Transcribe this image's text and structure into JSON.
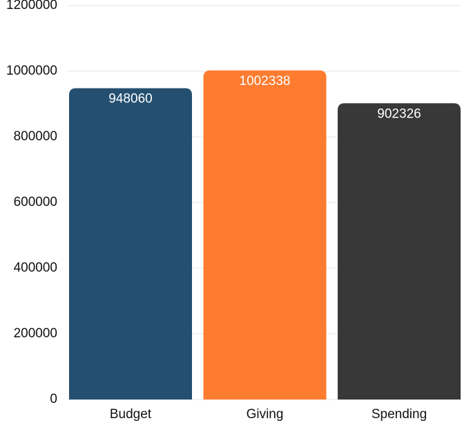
{
  "chart_data": {
    "type": "bar",
    "categories": [
      "Budget",
      "Giving",
      "Spending"
    ],
    "values": [
      948060,
      1002338,
      902326
    ],
    "colors": [
      "#244f70",
      "#fd7c30",
      "#383838"
    ],
    "ylim": [
      0,
      1200000
    ],
    "yticks": [
      0,
      200000,
      400000,
      600000,
      800000,
      1000000,
      1200000
    ],
    "grid": true
  }
}
